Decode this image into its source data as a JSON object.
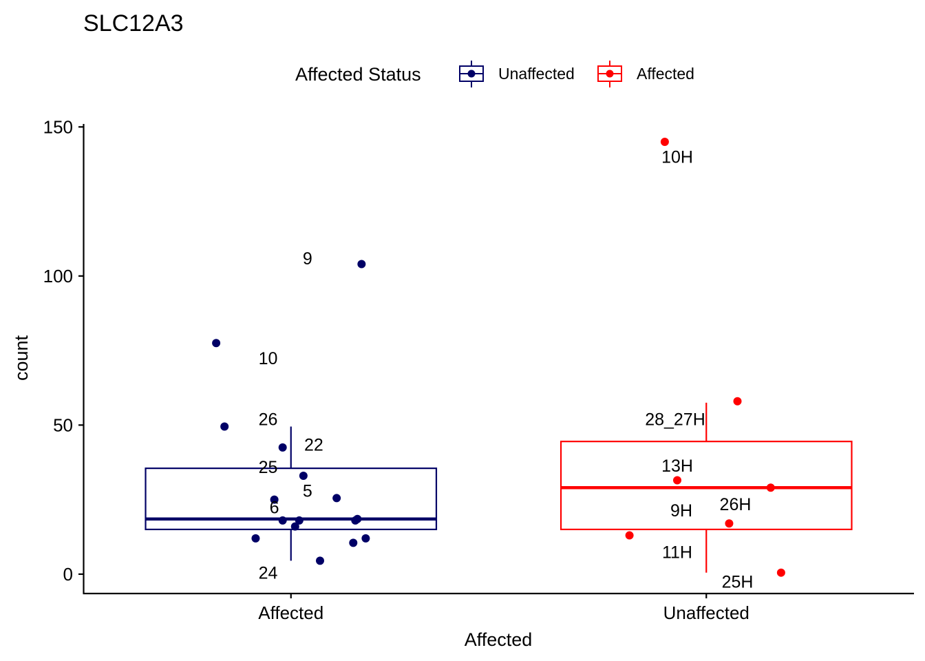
{
  "chart_data": {
    "type": "box",
    "title": "SLC12A3",
    "xlabel": "Affected",
    "ylabel": "count",
    "ylim": [
      -6.5,
      151
    ],
    "yticks": [
      0,
      50,
      100,
      150
    ],
    "categories": [
      "Affected",
      "Unaffected"
    ],
    "grid": false,
    "legend": {
      "title": "Affected Status",
      "position": "top",
      "entries": [
        {
          "name": "Unaffected",
          "color": "#000066"
        },
        {
          "name": "Affected",
          "color": "#ff0000"
        }
      ]
    },
    "boxes": [
      {
        "category": "Affected",
        "color": "#000066",
        "whisker_low": 4.5,
        "q1": 15,
        "median": 18.5,
        "q3": 35.5,
        "whisker_high": 49.5
      },
      {
        "category": "Unaffected",
        "color": "#ff0000",
        "whisker_low": 0.5,
        "q1": 15,
        "median": 29,
        "q3": 44.5,
        "whisker_high": 57.5
      }
    ],
    "points": [
      {
        "category": "Affected",
        "offset": 0.17,
        "y": 104,
        "color": "#000066"
      },
      {
        "category": "Affected",
        "offset": -0.18,
        "y": 77.5,
        "color": "#000066"
      },
      {
        "category": "Affected",
        "offset": -0.16,
        "y": 49.5,
        "color": "#000066"
      },
      {
        "category": "Affected",
        "offset": -0.02,
        "y": 42.5,
        "color": "#000066"
      },
      {
        "category": "Affected",
        "offset": 0.03,
        "y": 33,
        "color": "#000066"
      },
      {
        "category": "Affected",
        "offset": 0.11,
        "y": 25.5,
        "color": "#000066"
      },
      {
        "category": "Affected",
        "offset": -0.04,
        "y": 25,
        "color": "#000066"
      },
      {
        "category": "Affected",
        "offset": 0.16,
        "y": 18.5,
        "color": "#000066"
      },
      {
        "category": "Affected",
        "offset": 0.155,
        "y": 18,
        "color": "#000066"
      },
      {
        "category": "Affected",
        "offset": -0.02,
        "y": 18,
        "color": "#000066"
      },
      {
        "category": "Affected",
        "offset": 0.02,
        "y": 18,
        "color": "#000066"
      },
      {
        "category": "Affected",
        "offset": 0.01,
        "y": 16,
        "color": "#000066"
      },
      {
        "category": "Affected",
        "offset": -0.085,
        "y": 12,
        "color": "#000066"
      },
      {
        "category": "Affected",
        "offset": 0.18,
        "y": 12,
        "color": "#000066"
      },
      {
        "category": "Affected",
        "offset": 0.15,
        "y": 10.5,
        "color": "#000066"
      },
      {
        "category": "Affected",
        "offset": 0.07,
        "y": 4.5,
        "color": "#000066"
      },
      {
        "category": "Unaffected",
        "offset": -0.1,
        "y": 145,
        "color": "#ff0000"
      },
      {
        "category": "Unaffected",
        "offset": 0.075,
        "y": 58,
        "color": "#ff0000"
      },
      {
        "category": "Unaffected",
        "offset": -0.07,
        "y": 31.5,
        "color": "#ff0000"
      },
      {
        "category": "Unaffected",
        "offset": 0.155,
        "y": 29,
        "color": "#ff0000"
      },
      {
        "category": "Unaffected",
        "offset": 0.055,
        "y": 17,
        "color": "#ff0000"
      },
      {
        "category": "Unaffected",
        "offset": -0.185,
        "y": 13,
        "color": "#ff0000"
      },
      {
        "category": "Unaffected",
        "offset": 0.18,
        "y": 0.5,
        "color": "#ff0000"
      }
    ],
    "point_labels": [
      {
        "text": "9",
        "category": "Affected",
        "offset": 0.04,
        "y": 106
      },
      {
        "text": "10",
        "category": "Affected",
        "offset": -0.055,
        "y": 72.5
      },
      {
        "text": "26",
        "category": "Affected",
        "offset": -0.055,
        "y": 52
      },
      {
        "text": "22",
        "category": "Affected",
        "offset": 0.055,
        "y": 43.5
      },
      {
        "text": "25",
        "category": "Affected",
        "offset": -0.055,
        "y": 36
      },
      {
        "text": "5",
        "category": "Affected",
        "offset": 0.04,
        "y": 28
      },
      {
        "text": "6",
        "category": "Affected",
        "offset": -0.04,
        "y": 22.5
      },
      {
        "text": "24",
        "category": "Affected",
        "offset": -0.055,
        "y": 0.5
      },
      {
        "text": "10H",
        "category": "Unaffected",
        "offset": -0.07,
        "y": 140
      },
      {
        "text": "28_27H",
        "category": "Unaffected",
        "offset": -0.075,
        "y": 52
      },
      {
        "text": "13H",
        "category": "Unaffected",
        "offset": -0.07,
        "y": 36.5
      },
      {
        "text": "26H",
        "category": "Unaffected",
        "offset": 0.07,
        "y": 23.5
      },
      {
        "text": "9H",
        "category": "Unaffected",
        "offset": -0.06,
        "y": 21.5
      },
      {
        "text": "11H",
        "category": "Unaffected",
        "offset": -0.07,
        "y": 7.5
      },
      {
        "text": "25H",
        "category": "Unaffected",
        "offset": 0.075,
        "y": -2.5
      }
    ]
  }
}
